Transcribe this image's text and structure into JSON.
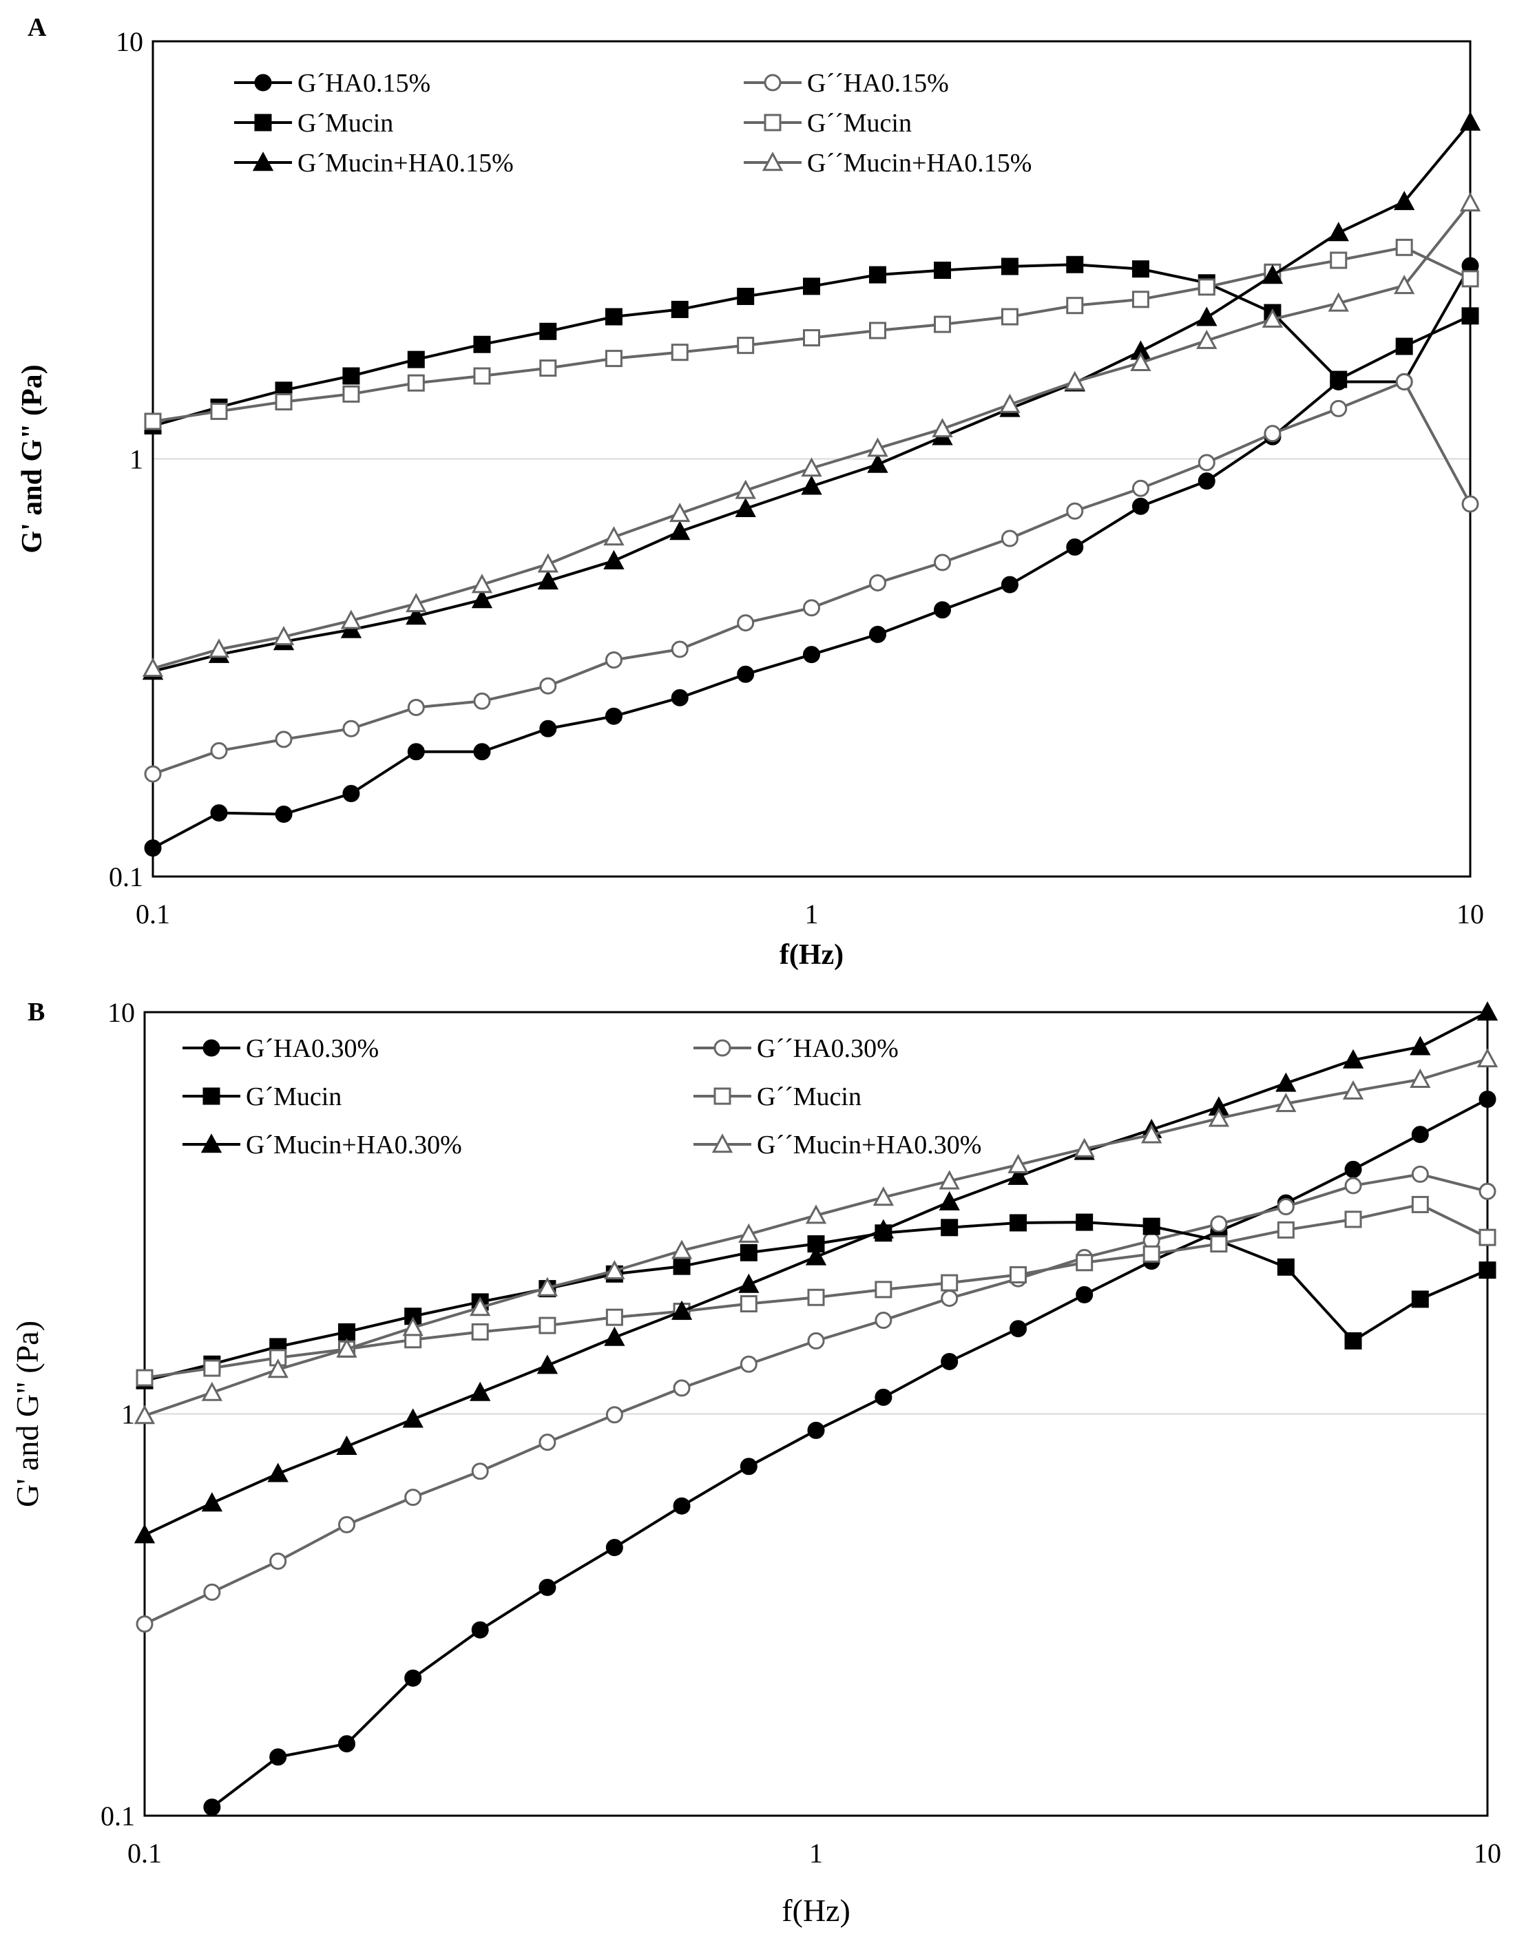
{
  "chart_data": [
    {
      "panel": "A",
      "type": "line",
      "title": "",
      "xlabel": "f(Hz)",
      "ylabel": "G' and G\" (Pa)",
      "xscale": "log",
      "yscale": "log",
      "xlim": [
        0.1,
        10
      ],
      "ylim": [
        0.1,
        10
      ],
      "xticks": [
        "0.1",
        "1",
        "10"
      ],
      "yticks": [
        "0.1",
        "1",
        "10"
      ],
      "gridlines": [
        1
      ],
      "legend_position": "top-left",
      "x": [
        0.1,
        0.126,
        0.158,
        0.2,
        0.251,
        0.316,
        0.398,
        0.501,
        0.631,
        0.794,
        1.0,
        1.26,
        1.58,
        2.0,
        2.51,
        3.16,
        3.98,
        5.01,
        6.31,
        7.94,
        10.0
      ],
      "series": [
        {
          "name": "G´HA0.15%",
          "color": "#000000",
          "marker": "circle",
          "fill": "filled",
          "values": [
            0.117,
            0.142,
            0.141,
            0.158,
            0.199,
            0.199,
            0.226,
            0.242,
            0.268,
            0.305,
            0.34,
            0.38,
            0.435,
            0.5,
            0.615,
            0.77,
            0.885,
            1.13,
            1.53,
            1.53,
            2.9
          ]
        },
        {
          "name": "G´´HA0.15%",
          "color": "#666666",
          "marker": "circle",
          "fill": "open",
          "values": [
            0.176,
            0.2,
            0.213,
            0.226,
            0.254,
            0.263,
            0.286,
            0.33,
            0.35,
            0.405,
            0.44,
            0.505,
            0.565,
            0.645,
            0.75,
            0.85,
            0.98,
            1.15,
            1.32,
            1.53,
            0.78
          ]
        },
        {
          "name": "G´Mucin",
          "color": "#000000",
          "marker": "square",
          "fill": "filled",
          "values": [
            1.2,
            1.33,
            1.46,
            1.58,
            1.73,
            1.88,
            2.02,
            2.19,
            2.28,
            2.45,
            2.59,
            2.76,
            2.83,
            2.89,
            2.92,
            2.85,
            2.64,
            2.24,
            1.55,
            1.86,
            2.2
          ]
        },
        {
          "name": "G´´Mucin",
          "color": "#666666",
          "marker": "square",
          "fill": "open",
          "values": [
            1.23,
            1.3,
            1.37,
            1.43,
            1.52,
            1.58,
            1.65,
            1.74,
            1.8,
            1.87,
            1.95,
            2.03,
            2.1,
            2.19,
            2.33,
            2.41,
            2.58,
            2.8,
            2.99,
            3.21,
            2.7
          ]
        },
        {
          "name": "G´Mucin+HA0.15%",
          "color": "#000000",
          "marker": "triangle",
          "fill": "filled",
          "values": [
            0.31,
            0.34,
            0.365,
            0.39,
            0.42,
            0.46,
            0.51,
            0.57,
            0.67,
            0.76,
            0.86,
            0.97,
            1.13,
            1.32,
            1.52,
            1.81,
            2.18,
            2.75,
            3.48,
            4.13,
            6.4
          ]
        },
        {
          "name": "G´´Mucin+HA0.15%",
          "color": "#666666",
          "marker": "triangle",
          "fill": "open",
          "values": [
            0.315,
            0.35,
            0.375,
            0.41,
            0.45,
            0.5,
            0.56,
            0.65,
            0.74,
            0.84,
            0.95,
            1.06,
            1.18,
            1.35,
            1.53,
            1.7,
            1.92,
            2.16,
            2.36,
            2.6,
            4.1
          ]
        }
      ]
    },
    {
      "panel": "B",
      "type": "line",
      "title": "",
      "xlabel": "f(Hz)",
      "ylabel": "G' and G\" (Pa)",
      "xscale": "log",
      "yscale": "log",
      "xlim": [
        0.1,
        10
      ],
      "ylim": [
        0.1,
        10
      ],
      "xticks": [
        "0.1",
        "1",
        "10"
      ],
      "yticks": [
        "0.1",
        "1",
        "10"
      ],
      "gridlines": [
        1
      ],
      "legend_position": "top-left",
      "x": [
        0.1,
        0.126,
        0.158,
        0.2,
        0.251,
        0.316,
        0.398,
        0.501,
        0.631,
        0.794,
        1.0,
        1.26,
        1.58,
        2.0,
        2.51,
        3.16,
        3.98,
        5.01,
        6.31,
        7.94,
        10.0
      ],
      "series": [
        {
          "name": "G´HA0.30%",
          "color": "#000000",
          "marker": "circle",
          "fill": "filled",
          "values": [
            null,
            0.105,
            0.14,
            0.151,
            0.22,
            0.29,
            0.37,
            0.465,
            0.59,
            0.74,
            0.91,
            1.1,
            1.35,
            1.63,
            1.98,
            2.4,
            2.85,
            3.35,
            4.06,
            4.96,
            6.07
          ]
        },
        {
          "name": "G´´HA0.30%",
          "color": "#666666",
          "marker": "circle",
          "fill": "open",
          "values": [
            0.3,
            0.36,
            0.43,
            0.53,
            0.62,
            0.72,
            0.85,
            0.995,
            1.16,
            1.33,
            1.52,
            1.71,
            1.94,
            2.17,
            2.45,
            2.7,
            2.97,
            3.28,
            3.7,
            3.95,
            3.58
          ]
        },
        {
          "name": "G´Mucin",
          "color": "#000000",
          "marker": "square",
          "fill": "filled",
          "values": [
            1.21,
            1.33,
            1.47,
            1.6,
            1.75,
            1.9,
            2.05,
            2.23,
            2.33,
            2.52,
            2.65,
            2.82,
            2.91,
            2.99,
            3.0,
            2.93,
            2.7,
            2.32,
            1.52,
            1.93,
            2.28
          ]
        },
        {
          "name": "G´´Mucin",
          "color": "#666666",
          "marker": "square",
          "fill": "open",
          "values": [
            1.23,
            1.3,
            1.38,
            1.45,
            1.53,
            1.6,
            1.66,
            1.74,
            1.8,
            1.88,
            1.95,
            2.04,
            2.12,
            2.22,
            2.38,
            2.5,
            2.65,
            2.87,
            3.05,
            3.32,
            2.75
          ]
        },
        {
          "name": "G´Mucin+HA0.30%",
          "color": "#000000",
          "marker": "triangle",
          "fill": "filled",
          "values": [
            0.5,
            0.6,
            0.71,
            0.83,
            0.97,
            1.13,
            1.32,
            1.55,
            1.8,
            2.1,
            2.46,
            2.87,
            3.37,
            3.9,
            4.5,
            5.1,
            5.8,
            6.65,
            7.6,
            8.2,
            10.0
          ]
        },
        {
          "name": "G´´Mucin+HA0.30%",
          "color": "#666666",
          "marker": "triangle",
          "fill": "open",
          "values": [
            0.99,
            1.13,
            1.29,
            1.45,
            1.64,
            1.84,
            2.06,
            2.27,
            2.55,
            2.8,
            3.12,
            3.46,
            3.8,
            4.17,
            4.57,
            4.95,
            5.44,
            5.92,
            6.36,
            6.8,
            7.65
          ]
        }
      ]
    }
  ]
}
